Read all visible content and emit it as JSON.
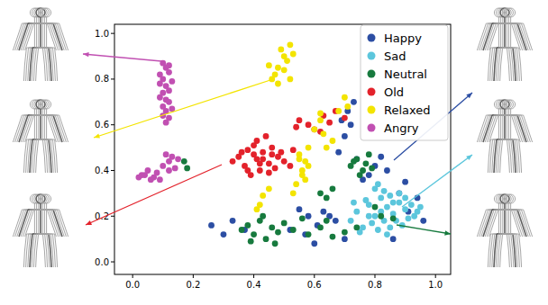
{
  "chart_data": {
    "type": "scatter",
    "marker": "circle",
    "legend": "upper right",
    "xlim": [
      -0.06,
      1.05
    ],
    "ylim": [
      -0.055,
      1.04
    ],
    "xticks": [
      {
        "value": 0,
        "label": "0.0"
      },
      {
        "value": 0.2,
        "label": "0.2"
      },
      {
        "value": 0.4,
        "label": "0.4"
      },
      {
        "value": 0.6,
        "label": "0.6"
      },
      {
        "value": 0.8,
        "label": "0.8"
      },
      {
        "value": 1,
        "label": "1.0"
      }
    ],
    "yticks": [
      {
        "value": 0,
        "label": "0.0"
      },
      {
        "value": 0.2,
        "label": "0.2"
      },
      {
        "value": 0.4,
        "label": "0.4"
      },
      {
        "value": 0.6,
        "label": "0.6"
      },
      {
        "value": 0.8,
        "label": "0.8"
      },
      {
        "value": 1,
        "label": "1.0"
      }
    ],
    "series": [
      {
        "name": "Happy",
        "color": "#2c4ea3",
        "x": [
          0.26,
          0.3,
          0.33,
          0.37,
          0.52,
          0.55,
          0.58,
          0.6,
          0.63,
          0.67,
          0.7,
          0.57,
          0.61,
          0.68,
          0.7,
          0.72,
          0.74,
          0.78,
          0.8,
          0.82,
          0.71,
          0.76,
          0.84,
          0.88,
          0.91,
          0.94,
          0.96,
          0.9,
          0.86,
          0.73,
          0.69,
          0.65
        ],
        "values": [
          0.16,
          0.12,
          0.18,
          0.14,
          0.14,
          0.23,
          0.2,
          0.08,
          0.22,
          0.18,
          0.1,
          0.12,
          0.16,
          0.48,
          0.55,
          0.6,
          0.45,
          0.38,
          0.42,
          0.46,
          0.66,
          0.36,
          0.4,
          0.3,
          0.22,
          0.28,
          0.18,
          0.35,
          0.1,
          0.7,
          0.62,
          0.2
        ]
      },
      {
        "name": "Sad",
        "color": "#5cc6dc",
        "x": [
          0.72,
          0.74,
          0.76,
          0.78,
          0.8,
          0.82,
          0.84,
          0.86,
          0.88,
          0.9,
          0.92,
          0.94,
          0.75,
          0.79,
          0.83,
          0.87,
          0.91,
          0.77,
          0.81,
          0.85,
          0.89,
          0.93,
          0.8,
          0.84,
          0.82,
          0.86,
          0.78,
          0.88,
          0.81,
          0.83,
          0.85,
          0.73,
          0.95,
          0.9
        ],
        "values": [
          0.18,
          0.22,
          0.15,
          0.25,
          0.2,
          0.28,
          0.24,
          0.21,
          0.26,
          0.23,
          0.25,
          0.22,
          0.13,
          0.17,
          0.31,
          0.18,
          0.19,
          0.27,
          0.14,
          0.29,
          0.16,
          0.2,
          0.32,
          0.12,
          0.22,
          0.26,
          0.2,
          0.3,
          0.34,
          0.18,
          0.15,
          0.26,
          0.24,
          0.28
        ]
      },
      {
        "name": "Neutral",
        "color": "#177a3e",
        "x": [
          0.36,
          0.38,
          0.4,
          0.42,
          0.44,
          0.46,
          0.48,
          0.39,
          0.43,
          0.47,
          0.5,
          0.53,
          0.56,
          0.58,
          0.62,
          0.66,
          0.7,
          0.64,
          0.72,
          0.74,
          0.76,
          0.78,
          0.75,
          0.73,
          0.77,
          0.79,
          0.62,
          0.64,
          0.66,
          0.17,
          0.18,
          0.74,
          0.82,
          0.86,
          0.8
        ],
        "values": [
          0.14,
          0.16,
          0.12,
          0.18,
          0.1,
          0.15,
          0.13,
          0.09,
          0.2,
          0.08,
          0.17,
          0.14,
          0.19,
          0.12,
          0.15,
          0.11,
          0.13,
          0.18,
          0.42,
          0.45,
          0.4,
          0.47,
          0.38,
          0.44,
          0.43,
          0.41,
          0.3,
          0.28,
          0.32,
          0.44,
          0.41,
          0.15,
          0.2,
          0.19,
          0.24
        ]
      },
      {
        "name": "Old",
        "color": "#e3222b",
        "x": [
          0.33,
          0.35,
          0.37,
          0.38,
          0.4,
          0.41,
          0.42,
          0.43,
          0.45,
          0.46,
          0.48,
          0.5,
          0.52,
          0.39,
          0.41,
          0.44,
          0.47,
          0.36,
          0.4,
          0.43,
          0.45,
          0.49,
          0.38,
          0.42,
          0.46,
          0.55,
          0.58,
          0.6,
          0.63,
          0.65,
          0.67,
          0.7,
          0.62,
          0.54,
          0.53
        ],
        "values": [
          0.44,
          0.46,
          0.42,
          0.49,
          0.51,
          0.45,
          0.4,
          0.48,
          0.43,
          0.5,
          0.46,
          0.44,
          0.42,
          0.38,
          0.53,
          0.55,
          0.41,
          0.48,
          0.47,
          0.45,
          0.39,
          0.48,
          0.4,
          0.43,
          0.47,
          0.62,
          0.6,
          0.58,
          0.64,
          0.61,
          0.66,
          0.63,
          0.57,
          0.59,
          0.49
        ]
      },
      {
        "name": "Relaxed",
        "color": "#f3e400",
        "x": [
          0.46,
          0.48,
          0.5,
          0.52,
          0.51,
          0.49,
          0.47,
          0.53,
          0.5,
          0.48,
          0.52,
          0.45,
          0.55,
          0.56,
          0.57,
          0.54,
          0.58,
          0.56,
          0.55,
          0.57,
          0.53,
          0.42,
          0.43,
          0.45,
          0.41,
          0.6,
          0.62,
          0.64,
          0.66,
          0.68,
          0.7,
          0.63,
          0.71,
          0.58,
          0.62
        ],
        "values": [
          0.8,
          0.85,
          0.9,
          0.95,
          0.88,
          0.93,
          0.82,
          0.91,
          0.84,
          0.78,
          0.8,
          0.86,
          0.45,
          0.4,
          0.36,
          0.34,
          0.42,
          0.38,
          0.47,
          0.44,
          0.3,
          0.25,
          0.29,
          0.32,
          0.23,
          0.58,
          0.62,
          0.5,
          0.53,
          0.66,
          0.72,
          0.56,
          0.68,
          0.5,
          0.65
        ]
      },
      {
        "name": "Angry",
        "color": "#c150b2",
        "x": [
          0.1,
          0.11,
          0.12,
          0.09,
          0.1,
          0.13,
          0.11,
          0.12,
          0.1,
          0.09,
          0.11,
          0.12,
          0.1,
          0.13,
          0.11,
          0.1,
          0.12,
          0.11,
          0.09,
          0.12,
          0.02,
          0.03,
          0.05,
          0.06,
          0.08,
          0.04,
          0.1,
          0.12,
          0.13,
          0.11,
          0.14,
          0.07,
          0.09,
          0.15,
          0.12
        ],
        "values": [
          0.87,
          0.85,
          0.83,
          0.82,
          0.8,
          0.79,
          0.77,
          0.75,
          0.74,
          0.72,
          0.71,
          0.7,
          0.68,
          0.67,
          0.66,
          0.64,
          0.63,
          0.61,
          0.78,
          0.86,
          0.37,
          0.38,
          0.4,
          0.36,
          0.39,
          0.38,
          0.42,
          0.44,
          0.46,
          0.47,
          0.41,
          0.37,
          0.36,
          0.45,
          0.4
        ]
      }
    ]
  }
}
